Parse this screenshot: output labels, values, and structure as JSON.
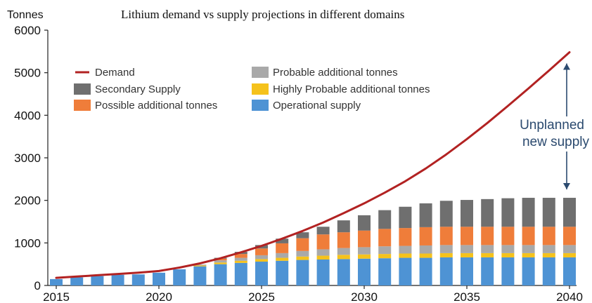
{
  "chart_data": {
    "type": "bar",
    "title": "Lithium demand vs supply projections in different domains",
    "ylabel": "Tonnes",
    "xlabel": "",
    "ylim": [
      0,
      6000
    ],
    "yticks": [
      0,
      1000,
      2000,
      3000,
      4000,
      5000,
      6000
    ],
    "x": [
      2015,
      2016,
      2017,
      2018,
      2019,
      2020,
      2021,
      2022,
      2023,
      2024,
      2025,
      2026,
      2027,
      2028,
      2029,
      2030,
      2031,
      2032,
      2033,
      2034,
      2035,
      2036,
      2037,
      2038,
      2039,
      2040
    ],
    "xticks": [
      2015,
      2020,
      2025,
      2030,
      2035,
      2040
    ],
    "stacked": true,
    "series": [
      {
        "name": "Operational supply",
        "color": "#4e93d4",
        "values": [
          150,
          190,
          220,
          250,
          260,
          300,
          380,
          450,
          500,
          530,
          560,
          580,
          600,
          610,
          620,
          630,
          640,
          650,
          650,
          660,
          660,
          660,
          660,
          660,
          660,
          660
        ]
      },
      {
        "name": "Highly Probable additional tonnes",
        "color": "#f5c21c",
        "values": [
          0,
          0,
          0,
          0,
          0,
          0,
          0,
          20,
          40,
          50,
          60,
          70,
          80,
          90,
          100,
          100,
          100,
          100,
          100,
          100,
          100,
          100,
          100,
          100,
          100,
          100
        ]
      },
      {
        "name": "Probable additional tonnes",
        "color": "#a9a9a9",
        "values": [
          0,
          0,
          0,
          0,
          0,
          0,
          0,
          20,
          50,
          70,
          90,
          110,
          130,
          150,
          160,
          170,
          180,
          180,
          190,
          190,
          190,
          190,
          190,
          190,
          190,
          190
        ]
      },
      {
        "name": "Possible additional tonnes",
        "color": "#ef7d3a",
        "values": [
          0,
          0,
          0,
          0,
          0,
          0,
          0,
          0,
          40,
          90,
          160,
          230,
          300,
          350,
          370,
          390,
          410,
          420,
          430,
          430,
          430,
          430,
          430,
          430,
          430,
          430
        ]
      },
      {
        "name": "Secondary Supply",
        "color": "#6f6f6f",
        "values": [
          0,
          0,
          0,
          0,
          0,
          0,
          0,
          0,
          20,
          50,
          80,
          110,
          140,
          180,
          280,
          360,
          440,
          500,
          560,
          610,
          630,
          650,
          670,
          680,
          680,
          680
        ]
      }
    ],
    "line": {
      "name": "Demand",
      "color": "#b22222",
      "values": [
        180,
        210,
        240,
        270,
        300,
        340,
        420,
        520,
        640,
        780,
        930,
        1100,
        1280,
        1480,
        1700,
        1930,
        2180,
        2450,
        2750,
        3080,
        3440,
        3820,
        4220,
        4630,
        5050,
        5480
      ]
    },
    "legend": [
      {
        "label": "Demand",
        "color": "#b22222",
        "kind": "line"
      },
      {
        "label": "Secondary Supply",
        "color": "#6f6f6f",
        "kind": "box"
      },
      {
        "label": "Possible additional tonnes",
        "color": "#ef7d3a",
        "kind": "box"
      },
      {
        "label": "Probable additional tonnes",
        "color": "#a9a9a9",
        "kind": "box"
      },
      {
        "label": "Highly Probable additional tonnes",
        "color": "#f5c21c",
        "kind": "box"
      },
      {
        "label": "Operational supply",
        "color": "#4e93d4",
        "kind": "box"
      }
    ],
    "legend_placement": "top-left",
    "grid": false,
    "annotation": {
      "lines": [
        "Unplanned",
        "new supply"
      ],
      "color": "#2b4a6f"
    }
  }
}
